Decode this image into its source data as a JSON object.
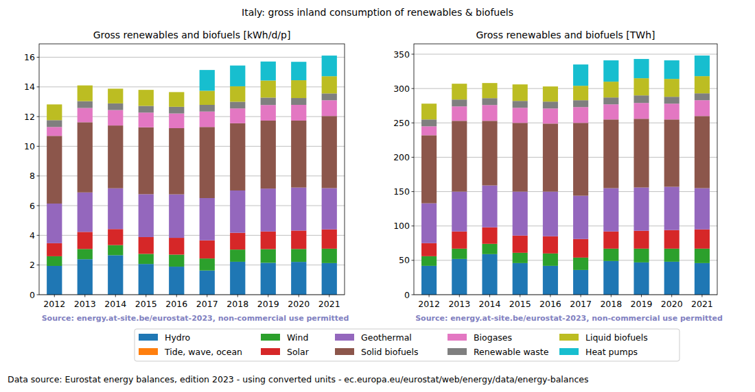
{
  "figure": {
    "title": "Italy: gross inland consumption of renewables & biofuels",
    "note": "Data source: Eurostat energy balances, edition 2023 - using converted units - ec.europa.eu/eurostat/web/energy/data/energy-balances"
  },
  "chart_data": [
    {
      "type": "bar",
      "stacked": true,
      "grid": true,
      "legend": "bottom",
      "title": "Gross renewables and biofuels [kWh/d/p]",
      "source": "Source: energy.at-site.be/eurostat-2023, non-commercial use permitted",
      "categories": [
        "2012",
        "2013",
        "2014",
        "2015",
        "2016",
        "2017",
        "2018",
        "2019",
        "2020",
        "2021"
      ],
      "ylim": [
        0,
        16.9
      ],
      "yticks": [
        0,
        2,
        4,
        6,
        8,
        10,
        12,
        14,
        16
      ],
      "series": [
        {
          "name": "Hydro",
          "color": "#1f77b4",
          "values": [
            1.94,
            2.39,
            2.66,
            2.07,
            1.89,
            1.63,
            2.22,
            2.15,
            2.21,
            2.13
          ]
        },
        {
          "name": "Tide, wave, ocean",
          "color": "#ff7f0e",
          "values": [
            0,
            0,
            0,
            0,
            0,
            0,
            0,
            0,
            0,
            0
          ]
        },
        {
          "name": "Wind",
          "color": "#2ca02c",
          "values": [
            0.65,
            0.69,
            0.68,
            0.68,
            0.81,
            0.81,
            0.82,
            0.92,
            0.87,
            0.97
          ]
        },
        {
          "name": "Solar",
          "color": "#d62728",
          "values": [
            0.88,
            1.15,
            1.08,
            1.13,
            1.13,
            1.22,
            1.13,
            1.19,
            1.24,
            1.3
          ]
        },
        {
          "name": "Geothermal",
          "color": "#9467bd",
          "values": [
            2.67,
            2.66,
            2.75,
            2.89,
            2.93,
            2.85,
            2.85,
            2.89,
            2.9,
            2.78
          ]
        },
        {
          "name": "Solid biofuels",
          "color": "#8c564b",
          "values": [
            4.56,
            4.73,
            4.23,
            4.51,
            4.46,
            4.79,
            4.53,
            4.58,
            4.51,
            4.86
          ]
        },
        {
          "name": "Biogases",
          "color": "#e377c2",
          "values": [
            0.6,
            0.96,
            1.04,
            0.99,
            0.99,
            1.04,
            1.0,
            1.05,
            1.06,
            1.06
          ]
        },
        {
          "name": "Renewable waste",
          "color": "#7f7f7f",
          "values": [
            0.46,
            0.46,
            0.45,
            0.45,
            0.45,
            0.45,
            0.45,
            0.5,
            0.46,
            0.46
          ]
        },
        {
          "name": "Liquid biofuels",
          "color": "#bcbd22",
          "values": [
            1.06,
            1.06,
            0.99,
            1.08,
            0.99,
            0.95,
            1.04,
            1.15,
            1.2,
            1.16
          ]
        },
        {
          "name": "Heat pumps",
          "color": "#17becf",
          "values": [
            0,
            0,
            0,
            0,
            0,
            1.4,
            1.4,
            1.28,
            1.24,
            1.39
          ]
        }
      ]
    },
    {
      "type": "bar",
      "stacked": true,
      "grid": true,
      "title": "Gross renewables and biofuels [TWh]",
      "source": "Source: energy.at-site.be/eurostat-2023, non-commercial use permitted",
      "categories": [
        "2012",
        "2013",
        "2014",
        "2015",
        "2016",
        "2017",
        "2018",
        "2019",
        "2020",
        "2021"
      ],
      "ylim": [
        0,
        365
      ],
      "yticks": [
        0,
        50,
        100,
        150,
        200,
        250,
        300,
        350
      ],
      "series": [
        {
          "name": "Hydro",
          "color": "#1f77b4",
          "values": [
            42,
            52,
            59,
            46,
            42,
            36,
            49,
            47,
            48,
            46
          ]
        },
        {
          "name": "Tide, wave, ocean",
          "color": "#ff7f0e",
          "values": [
            0,
            0,
            0,
            0,
            0,
            0,
            0,
            0,
            0,
            0
          ]
        },
        {
          "name": "Wind",
          "color": "#2ca02c",
          "values": [
            14,
            15,
            15,
            15,
            18,
            18,
            18,
            20,
            19,
            21
          ]
        },
        {
          "name": "Solar",
          "color": "#d62728",
          "values": [
            19,
            25,
            24,
            25,
            25,
            27,
            25,
            26,
            27,
            28
          ]
        },
        {
          "name": "Geothermal",
          "color": "#9467bd",
          "values": [
            58,
            58,
            61,
            64,
            65,
            63,
            63,
            63,
            63,
            60
          ]
        },
        {
          "name": "Solid biofuels",
          "color": "#8c564b",
          "values": [
            99,
            103,
            94,
            100,
            99,
            106,
            100,
            100,
            98,
            105
          ]
        },
        {
          "name": "Biogases",
          "color": "#e377c2",
          "values": [
            13,
            21,
            23,
            22,
            22,
            23,
            22,
            23,
            23,
            23
          ]
        },
        {
          "name": "Renewable waste",
          "color": "#7f7f7f",
          "values": [
            10,
            10,
            10,
            10,
            10,
            10,
            10,
            11,
            10,
            10
          ]
        },
        {
          "name": "Liquid biofuels",
          "color": "#bcbd22",
          "values": [
            23,
            23,
            22,
            24,
            22,
            21,
            23,
            25,
            26,
            25
          ]
        },
        {
          "name": "Heat pumps",
          "color": "#17becf",
          "values": [
            0,
            0,
            0,
            0,
            0,
            31,
            31,
            28,
            27,
            30
          ]
        }
      ]
    }
  ]
}
